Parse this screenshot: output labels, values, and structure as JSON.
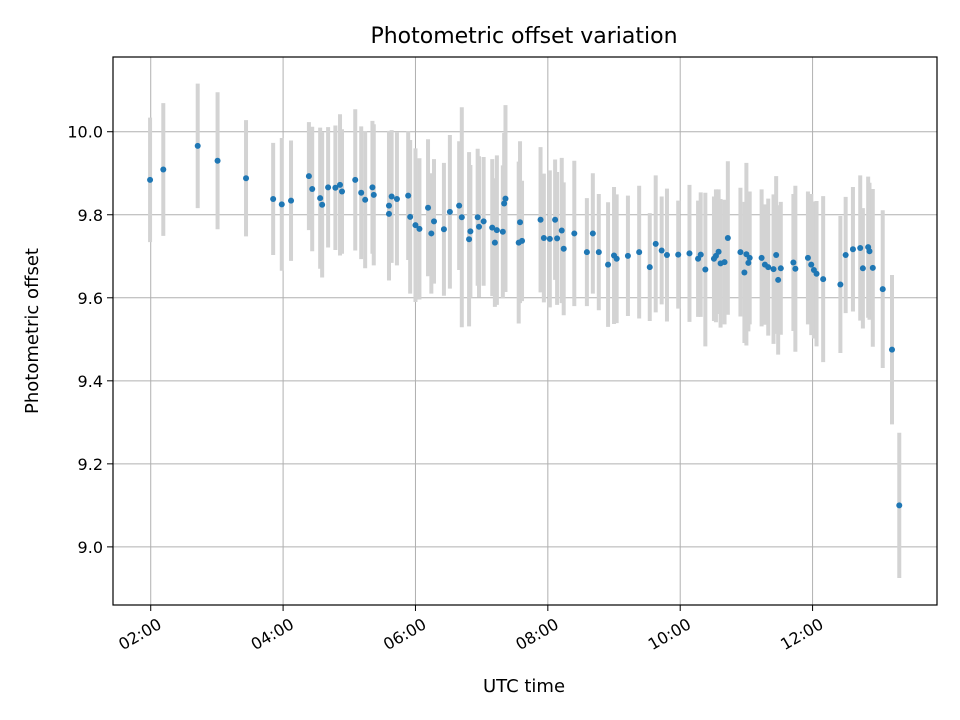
{
  "chart_data": {
    "type": "scatter",
    "title": "Photometric offset variation",
    "xlabel": "UTC time",
    "ylabel": "Photometric offset",
    "x_unit": "hours",
    "xlim": [
      1.43,
      13.88
    ],
    "ylim": [
      8.86,
      10.18
    ],
    "xticks": [
      2,
      4,
      6,
      8,
      10,
      12
    ],
    "xtick_labels": [
      "02:00",
      "04:00",
      "06:00",
      "08:00",
      "10:00",
      "12:00"
    ],
    "yticks": [
      9.0,
      9.2,
      9.4,
      9.6,
      9.8,
      10.0
    ],
    "ytick_labels": [
      "9.0",
      "9.2",
      "9.4",
      "9.6",
      "9.8",
      "10.0"
    ],
    "grid": true,
    "marker_color": "#1f77b4",
    "errorbar_color": "#d3d3d3",
    "x": [
      1.99,
      2.19,
      2.71,
      3.01,
      3.44,
      3.85,
      3.98,
      4.12,
      4.39,
      4.44,
      4.56,
      4.59,
      4.68,
      4.79,
      4.86,
      4.89,
      5.09,
      5.18,
      5.24,
      5.35,
      5.37,
      5.6,
      5.6,
      5.64,
      5.72,
      5.89,
      5.92,
      6.0,
      6.06,
      6.19,
      6.24,
      6.28,
      6.43,
      6.52,
      6.66,
      6.7,
      6.81,
      6.83,
      6.94,
      6.96,
      7.03,
      7.16,
      7.2,
      7.23,
      7.32,
      7.34,
      7.36,
      7.56,
      7.58,
      7.61,
      7.89,
      7.94,
      8.03,
      8.11,
      8.14,
      8.21,
      8.24,
      8.4,
      8.59,
      8.68,
      8.77,
      8.91,
      9.0,
      9.04,
      9.21,
      9.38,
      9.54,
      9.63,
      9.72,
      9.8,
      9.97,
      10.14,
      10.27,
      10.31,
      10.38,
      10.51,
      10.54,
      10.58,
      10.61,
      10.67,
      10.72,
      10.91,
      10.97,
      11.0,
      11.03,
      11.05,
      11.23,
      11.28,
      11.33,
      11.41,
      11.45,
      11.48,
      11.52,
      11.71,
      11.74,
      11.93,
      11.98,
      12.02,
      12.06,
      12.16,
      12.42,
      12.5,
      12.61,
      12.72,
      12.76,
      12.84,
      12.86,
      12.91,
      13.06,
      13.2,
      13.31
    ],
    "y": [
      9.884,
      9.909,
      9.966,
      9.93,
      9.888,
      9.838,
      9.825,
      9.834,
      9.893,
      9.862,
      9.84,
      9.824,
      9.866,
      9.865,
      9.872,
      9.856,
      9.884,
      9.853,
      9.836,
      9.866,
      9.848,
      9.822,
      9.802,
      9.844,
      9.838,
      9.846,
      9.795,
      9.775,
      9.766,
      9.817,
      9.755,
      9.784,
      9.765,
      9.807,
      9.822,
      9.794,
      9.741,
      9.76,
      9.794,
      9.771,
      9.784,
      9.769,
      9.733,
      9.763,
      9.759,
      9.827,
      9.839,
      9.733,
      9.782,
      9.737,
      9.788,
      9.744,
      9.742,
      9.788,
      9.743,
      9.762,
      9.718,
      9.755,
      9.71,
      9.755,
      9.71,
      9.68,
      9.702,
      9.694,
      9.701,
      9.71,
      9.674,
      9.73,
      9.714,
      9.703,
      9.704,
      9.707,
      9.694,
      9.704,
      9.668,
      9.694,
      9.701,
      9.711,
      9.683,
      9.686,
      9.744,
      9.71,
      9.661,
      9.705,
      9.684,
      9.696,
      9.696,
      9.68,
      9.674,
      9.669,
      9.703,
      9.643,
      9.671,
      9.685,
      9.67,
      9.696,
      9.68,
      9.667,
      9.658,
      9.645,
      9.632,
      9.703,
      9.717,
      9.72,
      9.671,
      9.722,
      9.712,
      9.672,
      9.621,
      9.475,
      9.1
    ],
    "yerr": [
      0.15,
      0.16,
      0.15,
      0.165,
      0.14,
      0.135,
      0.16,
      0.145,
      0.13,
      0.15,
      0.17,
      0.175,
      0.145,
      0.15,
      0.17,
      0.15,
      0.17,
      0.16,
      0.165,
      0.16,
      0.17,
      0.18,
      0.16,
      0.16,
      0.16,
      0.155,
      0.185,
      0.185,
      0.17,
      0.165,
      0.145,
      0.15,
      0.16,
      0.185,
      0.155,
      0.265,
      0.21,
      0.16,
      0.165,
      0.17,
      0.155,
      0.165,
      0.155,
      0.18,
      0.16,
      0.17,
      0.225,
      0.195,
      0.195,
      0.145,
      0.175,
      0.155,
      0.165,
      0.145,
      0.16,
      0.175,
      0.16,
      0.175,
      0.13,
      0.145,
      0.14,
      0.15,
      0.165,
      0.155,
      0.145,
      0.16,
      0.13,
      0.165,
      0.13,
      0.16,
      0.13,
      0.165,
      0.14,
      0.15,
      0.185,
      0.15,
      0.16,
      0.15,
      0.155,
      0.15,
      0.185,
      0.155,
      0.17,
      0.22,
      0.165,
      0.16,
      0.165,
      0.145,
      0.165,
      0.18,
      0.19,
      0.18,
      0.16,
      0.165,
      0.2,
      0.16,
      0.17,
      0.165,
      0.175,
      0.2,
      0.165,
      0.14,
      0.15,
      0.175,
      0.145,
      0.17,
      0.165,
      0.19,
      0.19,
      0.18,
      0.175
    ]
  }
}
